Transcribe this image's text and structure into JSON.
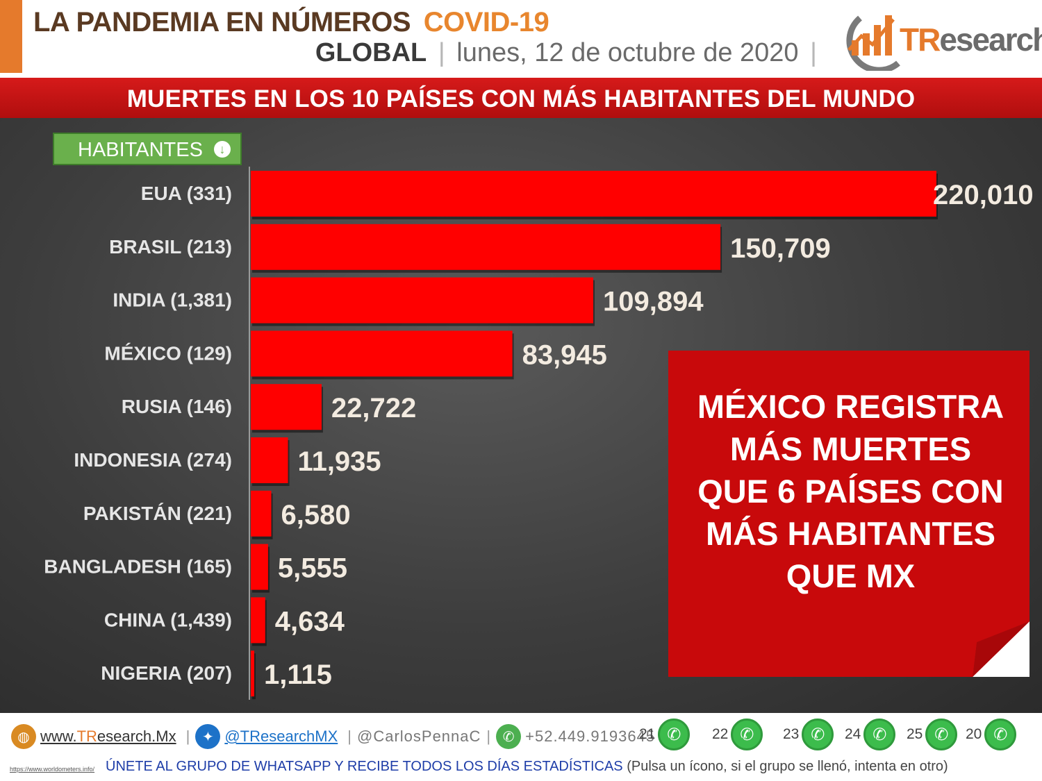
{
  "header": {
    "title": "LA PANDEMIA EN NÚMEROS",
    "title_accent": "COVID-19",
    "region": "GLOBAL",
    "separator": "|",
    "date": "lunes, 12 de octubre de 2020",
    "logo_text_accent": "TR",
    "logo_text": "esearch"
  },
  "banner": {
    "text": "MUERTES EN LOS 10 PAÍSES CON MÁS HABITANTES DEL MUNDO"
  },
  "badge": {
    "label": "HABITANTES",
    "icon": "arrow-down-circle-icon"
  },
  "callout": {
    "text": "MÉXICO REGISTRA\nMÁS MUERTES\nQUE 6 PAÍSES CON\nMÁS HABITANTES\nQUE MX"
  },
  "chart_data": {
    "type": "bar",
    "orientation": "horizontal",
    "categories": [
      "EUA (331)",
      "BRASIL (213)",
      "INDIA (1,381)",
      "MÉXICO (129)",
      "RUSIA (146)",
      "INDONESIA (274)",
      "PAKISTÁN (221)",
      "BANGLADESH (165)",
      "CHINA (1,439)",
      "NIGERIA (207)"
    ],
    "values": [
      220010,
      150709,
      109894,
      83945,
      22722,
      11935,
      6580,
      5555,
      4634,
      1115
    ],
    "data_labels": [
      "220,010",
      "150,709",
      "109,894",
      "83,945",
      "22,722",
      "11,935",
      "6,580",
      "5,555",
      "4,634",
      "1,115"
    ],
    "title": "",
    "xlabel": "",
    "ylabel": "",
    "bar_color": "#ff0000",
    "grid": false
  },
  "colors": {
    "accent_orange": "#e57a2c",
    "banner_red": "#c8090b",
    "bar_red": "#ff0000",
    "badge_green": "#6ab04c",
    "whatsapp_green": "#3cbc4c"
  },
  "footer": {
    "website": "www.TResearch.Mx",
    "website_accent": "TR",
    "website_prefix": "www.",
    "website_suffix": "esearch.Mx",
    "twitter": "@TResearchMX",
    "personal": "@CarlosPennaC",
    "phone": "+52.449.9193645",
    "separator": "|",
    "whatsapp_groups": [
      "21",
      "22",
      "23",
      "24",
      "25",
      "20"
    ],
    "source": "https://www.worldometers.info/",
    "join_text": "ÚNETE AL GRUPO DE WHATSAPP Y RECIBE TODOS LOS DÍAS ESTADÍSTICAS",
    "join_hint": "(Pulsa un ícono, si el grupo se llenó, intenta en otro)"
  }
}
